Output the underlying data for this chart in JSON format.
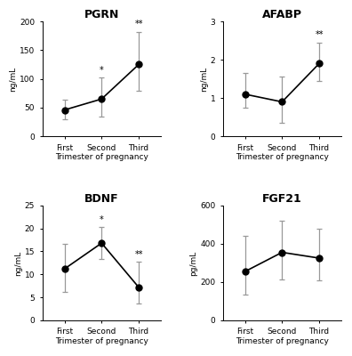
{
  "panels": [
    {
      "title": "PGRN",
      "ylabel": "ng/mL",
      "xlabel": "Trimester of pregnancy",
      "x_labels": [
        "First",
        "Second",
        "Third"
      ],
      "means": [
        46,
        65,
        125
      ],
      "errors_upper": [
        18,
        37,
        57
      ],
      "errors_lower": [
        16,
        30,
        45
      ],
      "ylim": [
        0,
        200
      ],
      "yticks": [
        0,
        50,
        100,
        150,
        200
      ],
      "significance": [
        null,
        "*",
        "**"
      ]
    },
    {
      "title": "AFABP",
      "ylabel": "ng/mL",
      "xlabel": "Trimester of pregnancy",
      "x_labels": [
        "First",
        "Second",
        "Third"
      ],
      "means": [
        1.1,
        0.9,
        1.9
      ],
      "errors_upper": [
        0.55,
        0.65,
        0.55
      ],
      "errors_lower": [
        0.35,
        0.55,
        0.45
      ],
      "ylim": [
        0,
        3
      ],
      "yticks": [
        0,
        1,
        2,
        3
      ],
      "significance": [
        null,
        null,
        "**"
      ]
    },
    {
      "title": "BDNF",
      "ylabel": "ng/mL",
      "xlabel": "Trimester of pregnancy",
      "x_labels": [
        "First",
        "Second",
        "Third"
      ],
      "means": [
        11.2,
        16.8,
        7.2
      ],
      "errors_upper": [
        5.5,
        3.5,
        5.5
      ],
      "errors_lower": [
        5.0,
        3.5,
        3.5
      ],
      "ylim": [
        0,
        25
      ],
      "yticks": [
        0,
        5,
        10,
        15,
        20,
        25
      ],
      "significance": [
        null,
        "*",
        "**"
      ]
    },
    {
      "title": "FGF21",
      "ylabel": "pg/mL",
      "xlabel": "Trimester of pregnancy",
      "x_labels": [
        "First",
        "Second",
        "Third"
      ],
      "means": [
        255,
        355,
        325
      ],
      "errors_upper": [
        185,
        165,
        155
      ],
      "errors_lower": [
        120,
        140,
        115
      ],
      "ylim": [
        0,
        600
      ],
      "yticks": [
        0,
        200,
        400,
        600
      ],
      "significance": [
        null,
        null,
        null
      ]
    }
  ],
  "line_color": "#000000",
  "marker_color": "#000000",
  "error_color": "#999999",
  "marker": "o",
  "markersize": 5,
  "linewidth": 1.2,
  "capsize": 2,
  "sig_fontsize": 7,
  "title_fontsize": 9,
  "label_fontsize": 6.5,
  "tick_fontsize": 6.5,
  "background_color": "#ffffff"
}
